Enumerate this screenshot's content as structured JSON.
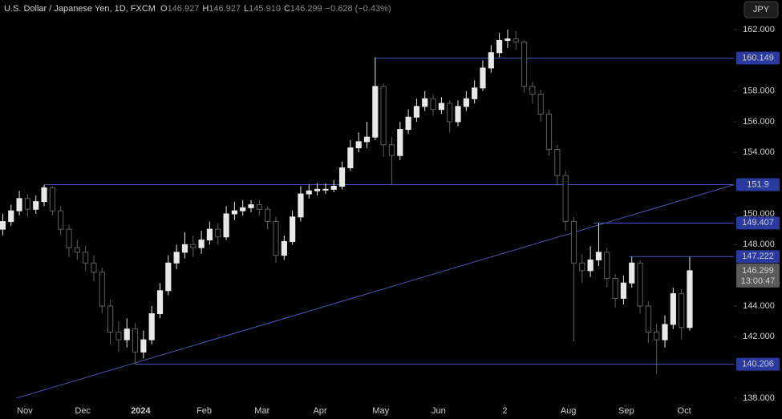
{
  "chart_data": {
    "type": "candlestick",
    "title": "U.S. Dollar / Japanese Yen, 1D, FXCM",
    "header": {
      "o_label": "O",
      "o": "146.927",
      "h_label": "H",
      "h": "146.927",
      "l_label": "L",
      "l": "145.910",
      "c_label": "C",
      "c": "146.299",
      "change": "−0.628 (−0.43%)"
    },
    "currency": "JPY",
    "x": [
      0,
      3,
      6,
      9,
      12,
      15,
      18,
      21,
      24,
      27,
      30,
      33,
      36,
      39,
      42,
      45,
      48,
      51,
      54,
      57,
      60,
      63,
      66,
      69,
      72,
      75,
      78,
      81,
      84,
      87,
      90,
      93,
      96,
      99,
      102,
      105,
      108,
      111,
      114,
      117,
      120,
      123,
      126,
      129,
      132,
      135,
      138,
      141,
      144,
      147,
      150,
      153,
      156,
      159,
      162,
      165,
      168,
      171,
      174,
      177,
      180,
      183,
      186,
      189,
      192,
      195,
      198,
      201,
      204,
      207,
      210,
      213,
      216,
      219,
      222,
      225,
      228,
      231,
      234,
      237,
      240,
      243,
      246,
      249
    ],
    "open": [
      149.0,
      149.5,
      150.2,
      151.0,
      150.3,
      150.8,
      151.7,
      150.2,
      149.0,
      147.8,
      147.5,
      146.8,
      146.2,
      144.0,
      142.3,
      141.8,
      142.5,
      141.0,
      141.8,
      143.5,
      145.0,
      146.8,
      147.5,
      148.0,
      147.8,
      148.3,
      149.0,
      148.5,
      150.0,
      150.2,
      150.4,
      150.6,
      150.3,
      149.5,
      147.3,
      148.2,
      149.8,
      151.3,
      151.5,
      151.6,
      151.6,
      151.8,
      153.0,
      154.3,
      154.7,
      155.0,
      158.3,
      154.5,
      153.8,
      155.5,
      156.3,
      157.0,
      157.5,
      156.8,
      157.2,
      156.0,
      157.0,
      157.5,
      158.2,
      159.5,
      160.5,
      161.3,
      161.4,
      161.2,
      158.3,
      157.8,
      156.5,
      154.2,
      152.5,
      149.5,
      146.8,
      146.3,
      147.0,
      147.5,
      145.8,
      144.5,
      145.5,
      146.8,
      144.0,
      142.3,
      141.8,
      142.8,
      144.8,
      142.6
    ],
    "high": [
      150.0,
      150.6,
      151.5,
      151.3,
      151.2,
      151.9,
      151.8,
      150.5,
      149.3,
      148.3,
      147.9,
      147.3,
      146.5,
      144.4,
      143.0,
      143.2,
      142.9,
      142.4,
      144.0,
      145.5,
      147.3,
      148.0,
      148.8,
      148.6,
      148.9,
      149.5,
      149.4,
      150.5,
      150.8,
      150.9,
      150.9,
      150.9,
      150.5,
      149.8,
      148.6,
      150.2,
      151.8,
      151.9,
      152.0,
      152.0,
      152.2,
      153.4,
      154.8,
      155.3,
      156.0,
      160.2,
      158.5,
      155.0,
      156.0,
      156.8,
      157.5,
      158.0,
      157.8,
      157.6,
      157.4,
      157.4,
      158.0,
      158.7,
      160.0,
      161.0,
      161.8,
      162.0,
      161.9,
      161.3,
      158.6,
      158.1,
      156.8,
      154.5,
      152.8,
      149.8,
      147.4,
      147.9,
      149.4,
      147.8,
      146.1,
      146.0,
      147.2,
      147.0,
      144.3,
      142.8,
      143.4,
      145.2,
      145.1,
      147.2
    ],
    "low": [
      148.6,
      149.2,
      149.9,
      149.8,
      150.0,
      150.5,
      149.9,
      148.6,
      147.2,
      147.0,
      146.3,
      145.6,
      143.5,
      141.5,
      141.0,
      141.3,
      140.2,
      140.6,
      141.5,
      143.2,
      144.7,
      146.4,
      147.1,
      147.2,
      147.4,
      148.0,
      148.0,
      148.3,
      149.6,
      149.9,
      150.1,
      149.9,
      149.0,
      146.8,
      147.0,
      148.0,
      149.5,
      151.0,
      151.2,
      151.3,
      151.4,
      151.6,
      152.8,
      154.0,
      154.3,
      154.8,
      153.7,
      151.9,
      153.5,
      155.2,
      156.0,
      156.7,
      156.4,
      156.5,
      155.3,
      155.7,
      156.7,
      157.2,
      158.0,
      159.2,
      160.2,
      160.8,
      160.7,
      157.9,
      157.2,
      156.0,
      153.8,
      151.9,
      148.9,
      141.7,
      145.5,
      145.9,
      146.6,
      145.2,
      143.9,
      144.1,
      145.2,
      143.5,
      141.6,
      139.6,
      141.3,
      142.5,
      141.8,
      142.4
    ],
    "close": [
      149.5,
      150.2,
      151.0,
      150.3,
      150.8,
      151.7,
      150.2,
      149.0,
      147.8,
      147.5,
      146.8,
      146.2,
      144.0,
      142.3,
      141.8,
      142.5,
      141.0,
      141.8,
      143.5,
      145.0,
      146.8,
      147.5,
      148.0,
      147.8,
      148.3,
      149.0,
      148.5,
      150.0,
      150.2,
      150.4,
      150.6,
      150.3,
      149.5,
      147.3,
      148.2,
      149.8,
      151.3,
      151.5,
      151.6,
      151.6,
      151.8,
      153.0,
      154.3,
      154.7,
      155.0,
      158.3,
      154.5,
      153.8,
      155.5,
      156.3,
      157.0,
      157.5,
      156.8,
      157.2,
      156.0,
      157.0,
      157.5,
      158.2,
      159.5,
      160.5,
      161.3,
      161.4,
      161.2,
      158.3,
      157.8,
      156.5,
      154.2,
      152.5,
      149.5,
      146.8,
      146.3,
      147.0,
      147.5,
      145.8,
      144.5,
      145.5,
      146.8,
      144.0,
      142.3,
      141.8,
      142.8,
      144.8,
      142.6,
      146.3
    ],
    "up_color": "#e8e8e8",
    "down_color": "#5f5f5f",
    "line_color": "#4a57b8",
    "levels": [
      {
        "value": 160.149,
        "start": 135
      },
      {
        "value": 151.9,
        "start": 15
      },
      {
        "value": 149.407,
        "start": 214
      },
      {
        "value": 147.222,
        "start": 227
      },
      {
        "value": 140.206,
        "start": 48
      }
    ],
    "trendline": {
      "x": [
        5,
        265
      ],
      "y": [
        138.0,
        151.9
      ]
    },
    "last_price": 146.299,
    "countdown": "13:00:47",
    "xlim": [
      -1,
      265
    ],
    "ylim": [
      137.58,
      163.2
    ],
    "xticks": [
      {
        "value": 8,
        "label": "Nov"
      },
      {
        "value": 29,
        "label": "Dec"
      },
      {
        "value": 50,
        "label": "2024"
      },
      {
        "value": 73,
        "label": "Feb"
      },
      {
        "value": 94,
        "label": "Mar"
      },
      {
        "value": 115,
        "label": "Apr"
      },
      {
        "value": 137,
        "label": "May"
      },
      {
        "value": 158,
        "label": "Jun"
      },
      {
        "value": 182,
        "label": "2"
      },
      {
        "value": 205,
        "label": "Aug"
      },
      {
        "value": 226,
        "label": "Sep"
      },
      {
        "value": 247,
        "label": "Oct"
      }
    ],
    "yticks": [
      {
        "value": 138,
        "label": "138.000"
      },
      {
        "value": 142,
        "label": "142.000"
      },
      {
        "value": 144,
        "label": "144.000"
      },
      {
        "value": 148,
        "label": "148.000"
      },
      {
        "value": 150,
        "label": "150.000"
      },
      {
        "value": 154,
        "label": "154.000"
      },
      {
        "value": 156,
        "label": "156.000"
      },
      {
        "value": 158,
        "label": "158.000"
      },
      {
        "value": 162,
        "label": "162.000"
      }
    ]
  }
}
